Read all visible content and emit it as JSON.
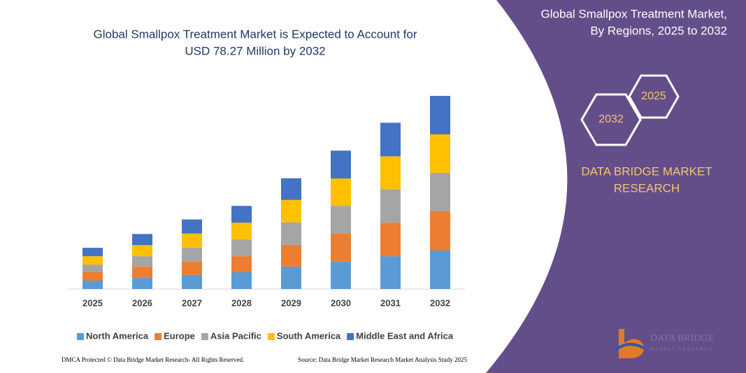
{
  "chart_data": {
    "type": "bar",
    "stacked": true,
    "title": [
      "Global Smallpox Treatment Market is Expected to Account for",
      "USD 78.27 Million by 2032"
    ],
    "categories": [
      "2025",
      "2026",
      "2027",
      "2028",
      "2029",
      "2030",
      "2031",
      "2032"
    ],
    "series": [
      {
        "name": "North America",
        "color": "#5b9bd5",
        "values": [
          3.4,
          4.5,
          5.7,
          6.8,
          9.1,
          11.1,
          13.3,
          15.6
        ]
      },
      {
        "name": "Europe",
        "color": "#ed7d31",
        "values": [
          3.4,
          4.5,
          5.4,
          6.5,
          8.8,
          11.3,
          13.6,
          15.9
        ]
      },
      {
        "name": "Asia Pacific",
        "color": "#a5a5a5",
        "values": [
          3.1,
          4.3,
          5.7,
          6.8,
          9.1,
          11.3,
          13.6,
          15.6
        ]
      },
      {
        "name": "South America",
        "color": "#ffc000",
        "values": [
          3.4,
          4.5,
          5.7,
          6.8,
          9.1,
          11.1,
          13.3,
          15.6
        ]
      },
      {
        "name": "Middle East and Africa",
        "color": "#4472c4",
        "values": [
          3.4,
          4.5,
          5.7,
          6.8,
          8.8,
          11.3,
          13.6,
          15.6
        ]
      }
    ],
    "ylim": [
      0,
      80
    ],
    "legend": "bottom"
  },
  "panel": {
    "title": [
      "Global Smallpox Treatment Market,",
      "By Regions, 2025 to 2032"
    ],
    "hexagons": [
      "2032",
      "2025"
    ],
    "brand": [
      "DATA BRIDGE MARKET",
      "RESEARCH"
    ],
    "logo": [
      "DATA BRIDGE",
      "MARKET RESEARCH"
    ]
  },
  "footer": {
    "left": "DMCA Protected © Data Bridge Market Research- All Rights Reserved.",
    "right": "Source: Data Bridge Market Research Market Analysis Study 2025"
  }
}
